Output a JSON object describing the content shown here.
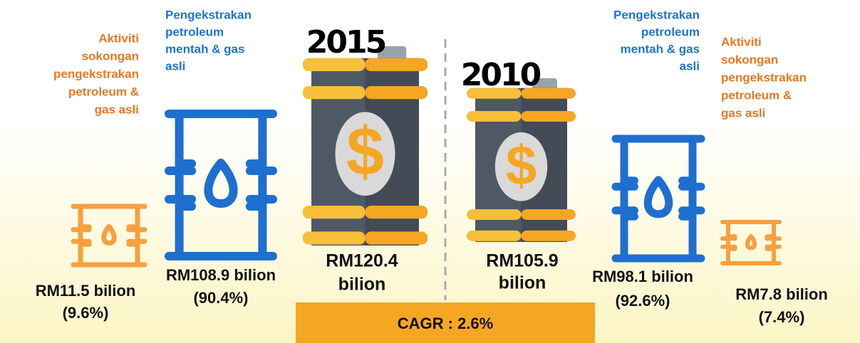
{
  "left": {
    "year": "2015",
    "total": [
      "RM120.4",
      "bilion"
    ],
    "extraction": {
      "label": [
        "Pengekstrakan",
        "petroleum",
        "mentah & gas",
        "asli"
      ],
      "value": [
        "RM108.9 bilion",
        "(90.4%)"
      ]
    },
    "support": {
      "label": [
        "Aktiviti",
        "sokongan",
        "pengekstrakan",
        "petroleum &",
        "gas asli"
      ],
      "value": [
        "RM11.5 bilion",
        "(9.6%)"
      ]
    }
  },
  "right": {
    "year": "2010",
    "total": [
      "RM105.9",
      "bilion"
    ],
    "extraction": {
      "label": [
        "Pengekstrakan",
        "petroleum",
        "mentah & gas",
        "asli"
      ],
      "value": [
        "RM98.1 bilion",
        "(92.6%)"
      ]
    },
    "support": {
      "label": [
        "Aktiviti",
        "sokongan",
        "pengekstrakan",
        "petroleum &",
        "gas asli"
      ],
      "value": [
        "RM7.8 bilion",
        "(7.4%)"
      ]
    }
  },
  "cagr": "CAGR : 2.6%"
}
